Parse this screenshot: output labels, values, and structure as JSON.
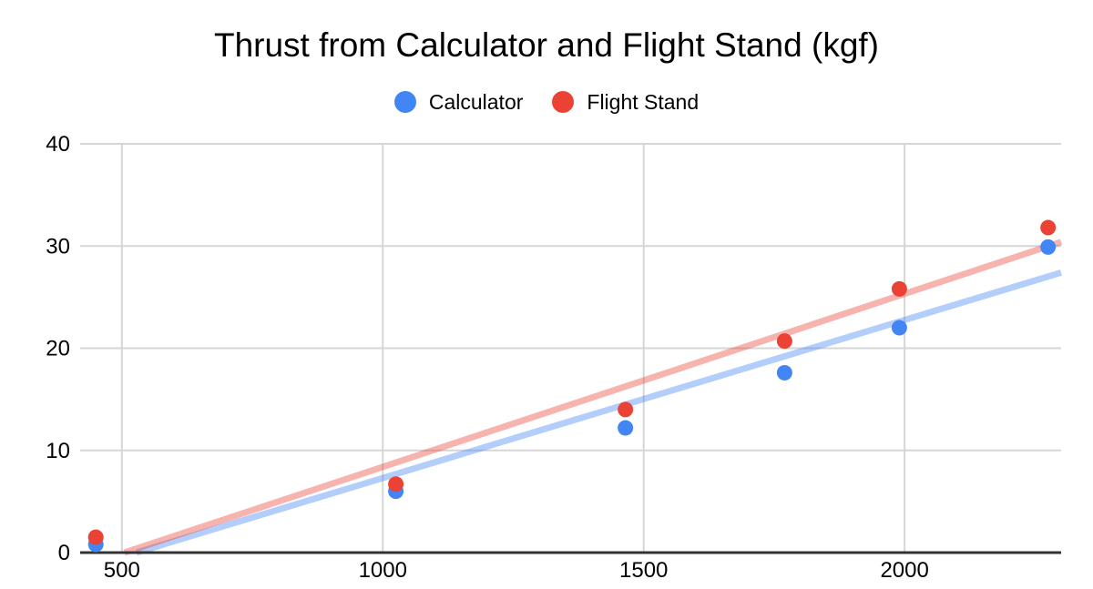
{
  "chart_data": {
    "type": "scatter",
    "title": "Thrust from Calculator and Flight Stand (kgf)",
    "xlabel": "",
    "ylabel": "",
    "x": [
      450,
      1025,
      1465,
      1770,
      1990,
      2275
    ],
    "series": [
      {
        "name": "Calculator",
        "color": "#4285F4",
        "values": [
          0.8,
          6.0,
          12.2,
          17.6,
          22.0,
          29.9
        ],
        "trendline": {
          "x1": 528,
          "y1": 0,
          "x2": 2300,
          "y2": 27.4,
          "opacity": 0.4
        }
      },
      {
        "name": "Flight Stand",
        "color": "#EA4335",
        "values": [
          1.5,
          6.7,
          14.0,
          20.7,
          25.8,
          31.8
        ],
        "trendline": {
          "x1": 505,
          "y1": 0,
          "x2": 2300,
          "y2": 30.4,
          "opacity": 0.4
        }
      }
    ],
    "xlim": [
      420,
      2300
    ],
    "ylim": [
      0,
      40
    ],
    "x_ticks": [
      500,
      1000,
      1500,
      2000
    ],
    "y_ticks": [
      0,
      10,
      20,
      30,
      40
    ],
    "grid": true,
    "legend_position": "top",
    "point_radius": 8.5,
    "trendline_width": 7,
    "colors": {
      "gridline": "#D6D6D6",
      "axis_line": "#333333",
      "text": "#000000"
    }
  }
}
